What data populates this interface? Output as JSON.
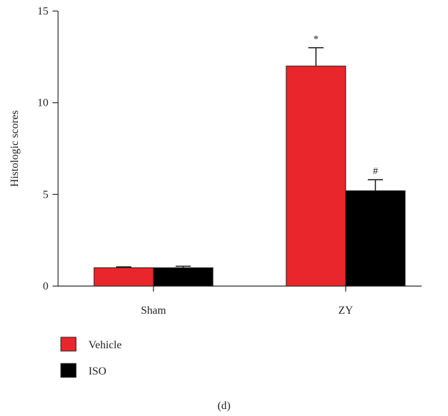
{
  "chart_data": {
    "type": "bar",
    "categories": [
      "Sham",
      "ZY"
    ],
    "series": [
      {
        "name": "Vehicle",
        "color": "#e8262b",
        "values": [
          1.0,
          12.0
        ],
        "errors": [
          0.05,
          1.0
        ]
      },
      {
        "name": "ISO",
        "color": "#000000",
        "values": [
          1.0,
          5.2
        ],
        "errors": [
          0.08,
          0.6
        ]
      }
    ],
    "annotations": [
      {
        "category": "ZY",
        "series": "Vehicle",
        "text": "*"
      },
      {
        "category": "ZY",
        "series": "ISO",
        "text": "#"
      }
    ],
    "ylabel": "Histologic scores",
    "xlabel": "",
    "ylim": [
      0,
      15
    ],
    "yticks": [
      0,
      5,
      10,
      15
    ],
    "legend_position": "bottom-left",
    "grid": false
  },
  "panel_label": "(d)"
}
